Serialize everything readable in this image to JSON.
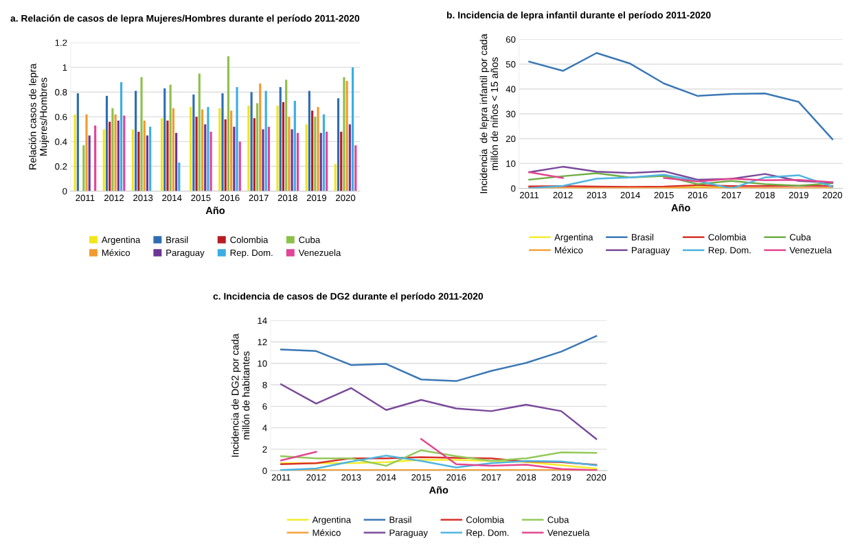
{
  "chart_data": [
    {
      "type": "bar",
      "title": "a. Relación de casos de lepra Mujeres/Hombres durante el período 2011-2020",
      "xlabel": "Año",
      "ylabel": "Relación casos de lepra\nMujeres/Hombres",
      "categories": [
        "2011",
        "2012",
        "2013",
        "2014",
        "2015",
        "2016",
        "2017",
        "2018",
        "2019",
        "2020"
      ],
      "ylim": [
        0,
        1.2
      ],
      "yticks": [
        0,
        {
          "value": 0.2,
          "label": "0.2"
        },
        {
          "value": 0.4,
          "label": "0.4"
        },
        {
          "value": 0.6,
          "label": "0.6"
        },
        {
          "value": 0.8,
          "label": "0.8"
        },
        1,
        {
          "value": 1.2,
          "label": "1.2"
        }
      ],
      "grid": "y",
      "legend": "bottom",
      "series": [
        {
          "name": "Argentina",
          "color": "#f2e51a",
          "values": [
            0.62,
            0.5,
            0.5,
            0.59,
            0.68,
            0.67,
            0.69,
            0.69,
            0.54,
            0.22
          ]
        },
        {
          "name": "Brasil",
          "color": "#2e6db4",
          "values": [
            0.79,
            0.77,
            0.81,
            0.83,
            0.78,
            0.79,
            0.8,
            0.84,
            0.81,
            0.75
          ]
        },
        {
          "name": "Colombia",
          "color": "#b81c22",
          "values": [
            null,
            0.56,
            0.48,
            0.57,
            0.6,
            0.58,
            0.59,
            0.72,
            0.65,
            0.48
          ]
        },
        {
          "name": "Cuba",
          "color": "#8dc04a",
          "values": [
            0.37,
            0.67,
            0.92,
            0.86,
            0.95,
            1.09,
            0.71,
            0.9,
            0.6,
            0.92
          ]
        },
        {
          "name": "México",
          "color": "#f29a2e",
          "values": [
            0.62,
            0.62,
            0.57,
            0.67,
            0.66,
            0.65,
            0.87,
            0.6,
            0.68,
            0.89
          ]
        },
        {
          "name": "Paraguay",
          "color": "#6b3594",
          "values": [
            0.45,
            0.57,
            0.45,
            0.47,
            0.54,
            0.52,
            0.5,
            0.5,
            0.47,
            0.54
          ]
        },
        {
          "name": "Rep. Dom.",
          "color": "#3aaee2",
          "values": [
            null,
            0.88,
            0.52,
            0.23,
            0.68,
            0.84,
            0.81,
            0.73,
            0.62,
            1.0
          ]
        },
        {
          "name": "Venezuela",
          "color": "#e2449a",
          "values": [
            0.53,
            0.61,
            null,
            null,
            0.48,
            0.4,
            0.52,
            0.47,
            0.48,
            0.37
          ]
        }
      ]
    },
    {
      "type": "line",
      "title": "b. Incidencia de lepra infantil durante el período 2011-2020",
      "xlabel": "Año",
      "ylabel": "Incidencia  de lepra infantil por cada\nmillón de niños < 15 años",
      "categories": [
        "2011",
        "2012",
        "2013",
        "2014",
        "2015",
        "2016",
        "2017",
        "2018",
        "2019",
        "2020"
      ],
      "ylim": [
        0,
        60
      ],
      "yticks": [
        0,
        10,
        20,
        30,
        40,
        50,
        60
      ],
      "grid": "y",
      "legend": "bottom",
      "series": [
        {
          "name": "Argentina",
          "color": "#f4ec2c",
          "values": [
            null,
            null,
            null,
            null,
            0.2,
            0.6,
            0.3,
            null,
            null,
            null
          ]
        },
        {
          "name": "Brasil",
          "color": "#3a78b5",
          "values": [
            51.0,
            47.3,
            54.5,
            50.2,
            42.2,
            37.2,
            38.0,
            38.2,
            34.8,
            19.8
          ]
        },
        {
          "name": "Colombia",
          "color": "#d8312b",
          "values": [
            0.8,
            0.9,
            0.7,
            0.6,
            0.7,
            1.3,
            0.9,
            0.9,
            1.0,
            0.9
          ]
        },
        {
          "name": "Cuba",
          "color": "#6fae45",
          "values": [
            3.5,
            4.9,
            6.1,
            4.4,
            5.0,
            1.7,
            3.0,
            1.7,
            1.1,
            2.1
          ]
        },
        {
          "name": "México",
          "color": "#f3a33a",
          "values": [
            0.1,
            0.1,
            0.1,
            0.1,
            0.2,
            0.2,
            0.2,
            0.1,
            0.1,
            0.1
          ]
        },
        {
          "name": "Paraguay",
          "color": "#7a4a9a",
          "values": [
            6.5,
            8.7,
            6.7,
            6.2,
            6.9,
            3.5,
            3.8,
            5.8,
            3.0,
            2.3
          ]
        },
        {
          "name": "Rep. Dom.",
          "color": "#4fb5e0",
          "values": [
            0,
            1.0,
            3.9,
            4.4,
            5.5,
            3.0,
            0,
            4.4,
            5.3,
            0.7
          ]
        },
        {
          "name": "Venezuela",
          "color": "#e3468f",
          "values": [
            6.5,
            4.2,
            null,
            null,
            4.2,
            2.8,
            3.9,
            3.3,
            3.4,
            2.5
          ]
        }
      ]
    },
    {
      "type": "line",
      "title": "c. Incidencia de casos de DG2 durante el período 2011-2020",
      "xlabel": "Año",
      "ylabel": "Incidencia de DG2 por cada\nmillón de habitantes",
      "categories": [
        "2011",
        "2012",
        "2013",
        "2014",
        "2015",
        "2016",
        "2017",
        "2018",
        "2019",
        "2020"
      ],
      "ylim": [
        0,
        14
      ],
      "yticks": [
        0,
        2,
        4,
        6,
        8,
        10,
        12,
        14
      ],
      "grid": "y",
      "legend": "bottom",
      "series": [
        {
          "name": "Argentina",
          "color": "#f4ec2c",
          "values": [
            0.7,
            0.7,
            0.7,
            0.8,
            1.0,
            1.0,
            0.9,
            0.8,
            0.5,
            0.2
          ]
        },
        {
          "name": "Brasil",
          "color": "#3a78b5",
          "values": [
            11.3,
            11.15,
            9.85,
            9.95,
            8.5,
            8.35,
            9.3,
            10.05,
            11.1,
            12.55
          ]
        },
        {
          "name": "Colombia",
          "color": "#d8312b",
          "values": [
            0.6,
            0.7,
            1.15,
            1.15,
            1.25,
            1.2,
            1.15,
            0.85,
            0.8,
            0.55
          ]
        },
        {
          "name": "Cuba",
          "color": "#93c95a",
          "values": [
            1.35,
            1.15,
            1.15,
            0.45,
            1.9,
            1.35,
            0.9,
            1.15,
            1.7,
            1.65
          ]
        },
        {
          "name": "México",
          "color": "#f3a33a",
          "values": [
            0.05,
            0.05,
            0.05,
            0.05,
            0.05,
            0.05,
            0.05,
            0.05,
            0.05,
            0.05
          ]
        },
        {
          "name": "Paraguay",
          "color": "#7a4a9a",
          "values": [
            8.05,
            6.25,
            7.7,
            5.65,
            6.6,
            5.8,
            5.55,
            6.15,
            5.55,
            2.95
          ]
        },
        {
          "name": "Rep. Dom.",
          "color": "#4fb5e0",
          "values": [
            0.05,
            0.2,
            0.85,
            1.4,
            0.9,
            0.3,
            0.7,
            0.9,
            0.85,
            0.5
          ]
        },
        {
          "name": "Venezuela",
          "color": "#e3468f",
          "values": [
            0.95,
            1.75,
            null,
            null,
            2.95,
            0.6,
            0.45,
            0.55,
            0.15,
            0.05
          ]
        }
      ]
    }
  ]
}
